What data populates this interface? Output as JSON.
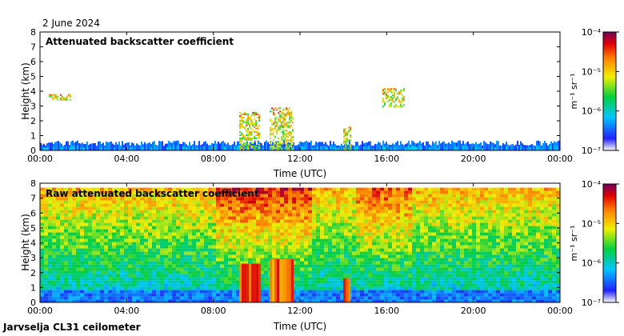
{
  "date": "2 June 2024",
  "footer": "Jarvselja CL31 ceilometer",
  "colorbar": {
    "unit_label": "m⁻¹ sr⁻¹",
    "tick_labels": [
      "10⁻⁴",
      "10⁻⁵",
      "10⁻⁶",
      "10⁻⁷"
    ],
    "exponents": [
      -4,
      -5,
      -6,
      -7
    ]
  },
  "chart_data": [
    {
      "type": "heatmap",
      "title": "Attenuated backscatter coefficient",
      "xlabel": "Time (UTC)",
      "ylabel": "Height (km)",
      "xticks": [
        "00:00",
        "04:00",
        "08:00",
        "12:00",
        "16:00",
        "20:00",
        "00:00"
      ],
      "yticks": [
        "0",
        "1",
        "2",
        "3",
        "4",
        "5",
        "6",
        "7",
        "8"
      ],
      "xlim_hours": [
        0,
        24
      ],
      "ylim_km": [
        0,
        8
      ],
      "features": [
        {
          "desc": "boundary layer aerosol",
          "t0": 0,
          "t1": 24,
          "h_top": 0.45
        },
        {
          "desc": "cloud",
          "t0": 0.4,
          "t1": 1.4,
          "h0": 3.4,
          "h1": 3.8
        },
        {
          "desc": "cloud",
          "t0": 9.2,
          "t1": 10.1,
          "h0": 0,
          "h1": 2.6
        },
        {
          "desc": "cloud",
          "t0": 10.6,
          "t1": 11.7,
          "h0": 0,
          "h1": 2.9
        },
        {
          "desc": "cloud",
          "t0": 14.0,
          "t1": 14.3,
          "h0": 0,
          "h1": 1.6
        },
        {
          "desc": "cloud",
          "t0": 15.8,
          "t1": 16.8,
          "h0": 3.0,
          "h1": 4.2
        }
      ]
    },
    {
      "type": "heatmap",
      "title": "Raw attenuated backscatter coefficient",
      "xlabel": "Time (UTC)",
      "ylabel": "Height (km)",
      "xticks": [
        "00:00",
        "04:00",
        "08:00",
        "12:00",
        "16:00",
        "20:00",
        "00:00"
      ],
      "yticks": [
        "0",
        "1",
        "2",
        "3",
        "4",
        "5",
        "6",
        "7",
        "8"
      ],
      "xlim_hours": [
        0,
        24
      ],
      "ylim_km": [
        0,
        8
      ],
      "data_top_km": 7.7
    }
  ]
}
